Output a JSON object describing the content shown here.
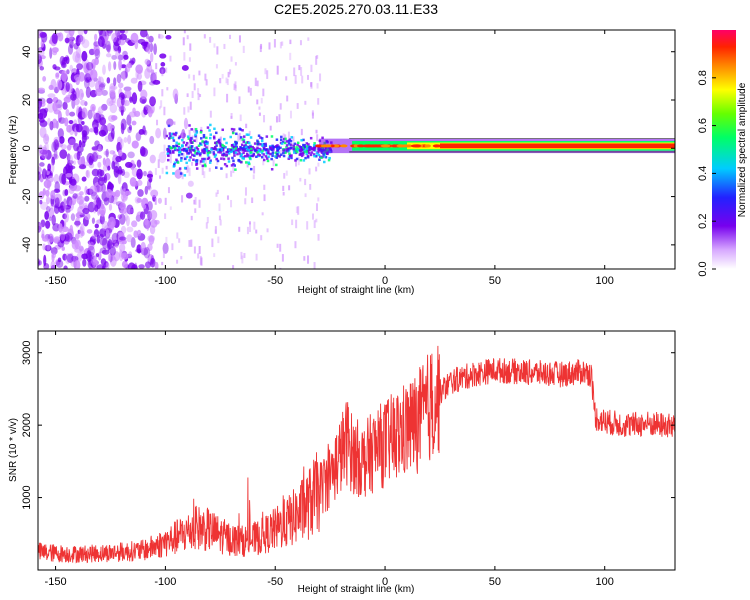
{
  "chart_data": [
    {
      "type": "heatmap",
      "title": "C2E5.2025.270.03.11.E33",
      "xlabel": "Height of straight line (km)",
      "ylabel": "Frequency (Hz)",
      "xlim": [
        -158,
        132
      ],
      "ylim": [
        -50,
        49
      ],
      "xticks": [
        -150,
        -100,
        -50,
        0,
        50,
        100
      ],
      "yticks": [
        -40,
        -20,
        0,
        20,
        40
      ],
      "colorbar": {
        "label": "Normalized spectral amplitude",
        "range": [
          0,
          1
        ],
        "ticks": [
          "0.0",
          "0.2",
          "0.4",
          "0.6",
          "0.8"
        ],
        "colors": [
          "#ffffff",
          "#cc88ff",
          "#7700ee",
          "#2222ff",
          "#00ccff",
          "#00ff66",
          "#66ff00",
          "#ffff00",
          "#ff8800",
          "#ff2200",
          "#ff0066"
        ]
      },
      "band_description": "Narrow high-amplitude band near 1 Hz from about -30 km to 132 km; broadband low-amplitude scatter below -100 km; moderate amplitude cluster between -100 km and -30 km near 0 Hz"
    },
    {
      "type": "line",
      "xlabel": "Height of straight line (km)",
      "ylabel": "SNR (10 * v/v)",
      "xlim": [
        -158,
        132
      ],
      "ylim": [
        0,
        3300
      ],
      "xticks": [
        -150,
        -100,
        -50,
        0,
        50,
        100
      ],
      "yticks": [
        1000,
        2000,
        3000
      ],
      "color": "#ee3333",
      "series": [
        {
          "name": "SNR",
          "x": [
            -158,
            -150,
            -140,
            -130,
            -120,
            -110,
            -100,
            -90,
            -85,
            -80,
            -75,
            -70,
            -65,
            -60,
            -55,
            -50,
            -45,
            -40,
            -35,
            -30,
            -25,
            -20,
            -17,
            -15,
            -10,
            -5,
            0,
            5,
            10,
            15,
            20,
            25,
            30,
            40,
            50,
            60,
            70,
            80,
            90,
            94,
            95,
            96,
            100,
            110,
            120,
            132
          ],
          "y": [
            250,
            230,
            220,
            230,
            250,
            270,
            380,
            520,
            580,
            550,
            480,
            420,
            400,
            420,
            480,
            560,
            650,
            760,
            900,
            1100,
            1300,
            1600,
            1800,
            1600,
            1500,
            1650,
            1750,
            1850,
            1950,
            2050,
            2250,
            2450,
            2600,
            2700,
            2760,
            2740,
            2720,
            2700,
            2740,
            2700,
            2300,
            2100,
            2050,
            2000,
            2020,
            1980
          ]
        }
      ]
    }
  ]
}
